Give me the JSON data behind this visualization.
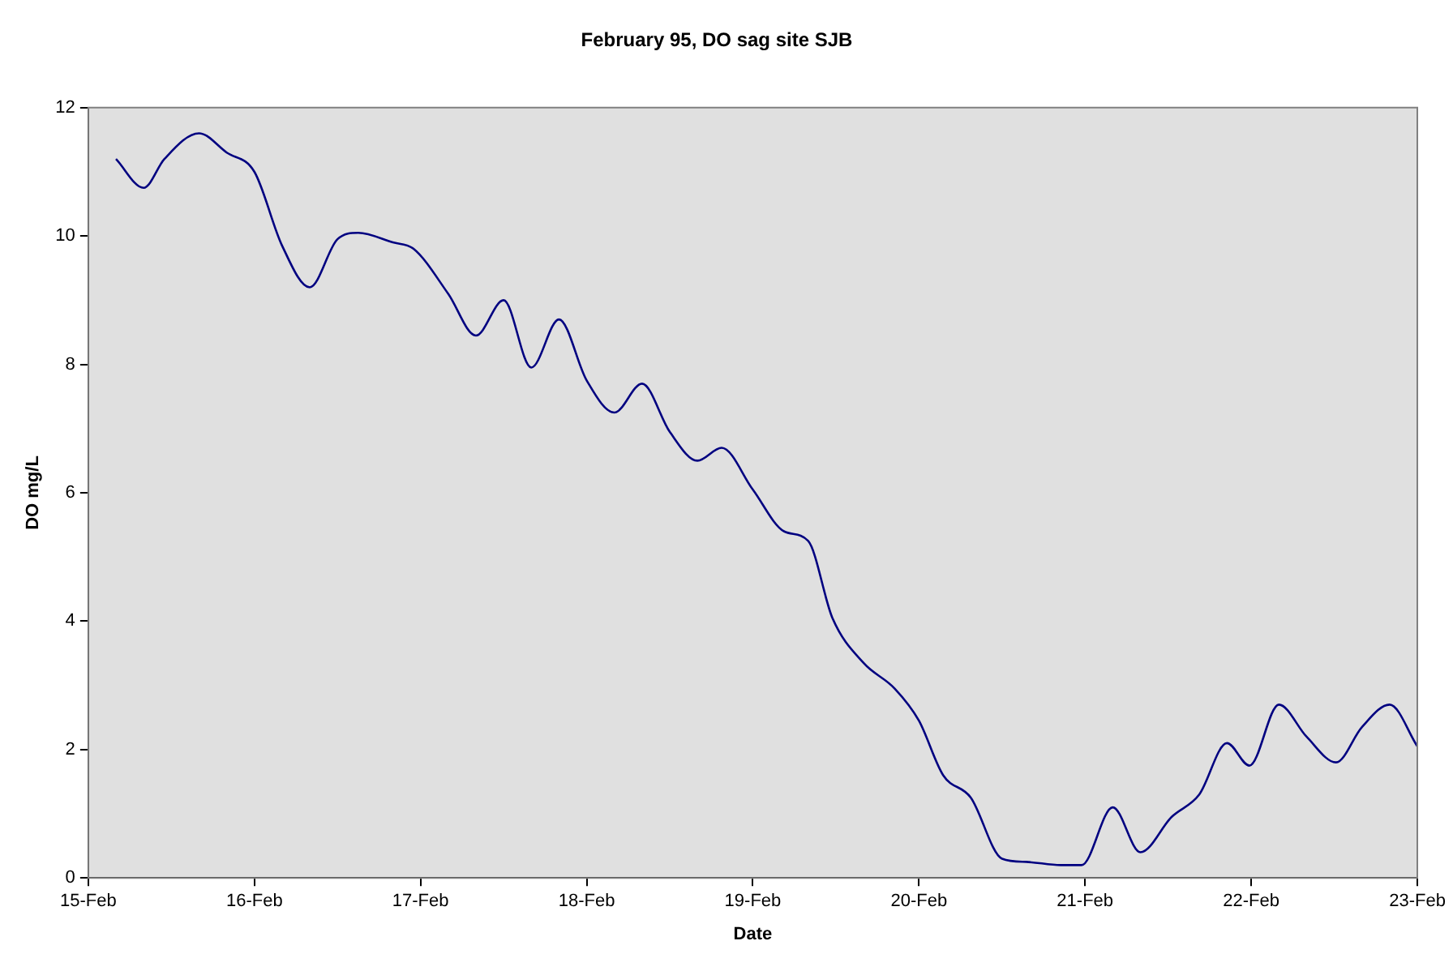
{
  "chart_data": {
    "type": "line",
    "title": "February 95, DO sag site SJB",
    "xlabel": "Date",
    "ylabel": "DO mg/L",
    "x": [
      "--02-15T04:00",
      "--02-15T08:00",
      "--02-15T11:00",
      "--02-15T16:00",
      "--02-15T20:00",
      "--02-16T00:00",
      "--02-16T04:00",
      "--02-16T08:00",
      "--02-16T12:00",
      "--02-16T15:00",
      "--02-16T20:00",
      "--02-16T23:00",
      "--02-17T04:00",
      "--02-17T08:00",
      "--02-17T12:00",
      "--02-17T16:00",
      "--02-17T20:00",
      "--02-18T00:00",
      "--02-18T04:00",
      "--02-18T08:00",
      "--02-18T12:00",
      "--02-18T16:00",
      "--02-18T19:30",
      "--02-19T00:00",
      "--02-19T04:30",
      "--02-19T08:00",
      "--02-19T11:30",
      "--02-19T16:00",
      "--02-19T20:30",
      "--02-20T00:00",
      "--02-20T03:30",
      "--02-20T07:30",
      "--02-20T12:00",
      "--02-20T15:30",
      "--02-20T20:30",
      "--02-20T23:30",
      "--02-21T04:00",
      "--02-21T08:00",
      "--02-21T12:30",
      "--02-21T16:30",
      "--02-21T20:30",
      "--02-21T23:45",
      "--02-22T04:00",
      "--02-22T08:00",
      "--02-22T12:15",
      "--02-22T16:00",
      "--02-22T20:00",
      "--02-23T00:00"
    ],
    "series": [
      {
        "color": "#000080",
        "values": [
          11.2,
          10.75,
          11.2,
          11.6,
          11.3,
          11.0,
          9.85,
          9.2,
          9.95,
          10.05,
          9.9,
          9.8,
          9.1,
          8.45,
          9.0,
          7.95,
          8.7,
          7.75,
          7.25,
          7.7,
          6.95,
          6.5,
          6.7,
          6.05,
          5.4,
          5.25,
          4.05,
          3.35,
          2.95,
          2.45,
          1.6,
          1.25,
          0.3,
          0.25,
          0.2,
          0.2,
          1.1,
          0.4,
          0.95,
          1.3,
          2.1,
          1.75,
          2.7,
          2.2,
          1.8,
          2.35,
          2.7,
          2.05
        ]
      }
    ],
    "xlim": [
      "--02-15",
      "--02-23"
    ],
    "xticks": [
      {
        "value": "--02-15",
        "label": "15-Feb"
      },
      {
        "value": "--02-16",
        "label": "16-Feb"
      },
      {
        "value": "--02-17",
        "label": "17-Feb"
      },
      {
        "value": "--02-18",
        "label": "18-Feb"
      },
      {
        "value": "--02-19",
        "label": "19-Feb"
      },
      {
        "value": "--02-20",
        "label": "20-Feb"
      },
      {
        "value": "--02-21",
        "label": "21-Feb"
      },
      {
        "value": "--02-22",
        "label": "22-Feb"
      },
      {
        "value": "--02-23",
        "label": "23-Feb"
      }
    ],
    "ylim": [
      0,
      12
    ],
    "yticks": [
      0,
      2,
      4,
      6,
      8,
      10,
      12
    ],
    "grid": false,
    "legend": false,
    "marker": "none",
    "line_style": "solid"
  }
}
